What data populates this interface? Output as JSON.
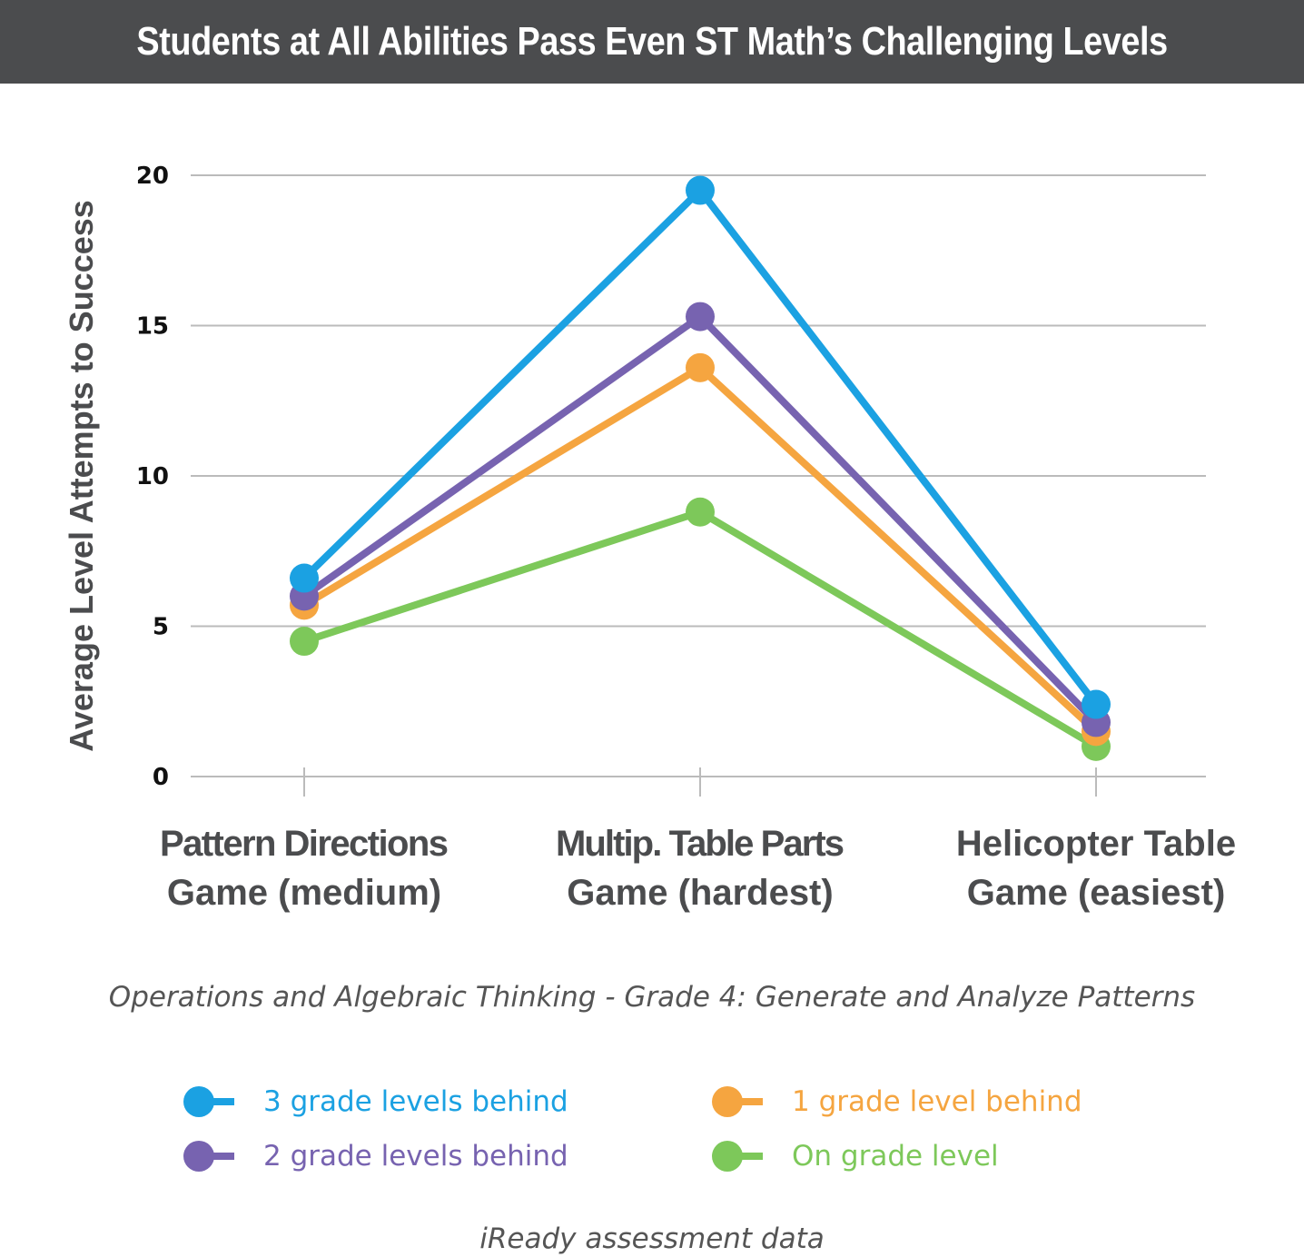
{
  "title": "Students at All Abilities Pass Even ST Math’s Challenging Levels",
  "subtitle": "Operations and Algebraic Thinking - Grade 4: Generate and Analyze Patterns",
  "source": "iReady assessment data",
  "chart_data": {
    "type": "line",
    "title": "Students at All Abilities Pass Even ST Math’s Challenging Levels",
    "ylabel": "Average Level Attempts to Success",
    "xlabel": "",
    "ylim": [
      0,
      20
    ],
    "yticks": [
      "0",
      "5",
      "10",
      "15",
      "20"
    ],
    "grid": true,
    "categories": [
      [
        "Pattern Directions",
        "Game (medium)"
      ],
      [
        "Multip. Table Parts",
        "Game (hardest)"
      ],
      [
        "Helicopter Table",
        "Game (easiest)"
      ]
    ],
    "legend_position": "bottom",
    "series": [
      {
        "name": "On grade level",
        "color": "#7dc85a",
        "values": [
          4.5,
          8.8,
          1.0
        ]
      },
      {
        "name": "1 grade level behind",
        "color": "#f5a540",
        "values": [
          5.7,
          13.6,
          1.5
        ]
      },
      {
        "name": "2 grade levels behind",
        "color": "#7763b0",
        "values": [
          6.0,
          15.3,
          1.8
        ]
      },
      {
        "name": "3 grade levels behind",
        "color": "#1ba1e2",
        "values": [
          6.6,
          19.5,
          2.4
        ]
      }
    ]
  }
}
